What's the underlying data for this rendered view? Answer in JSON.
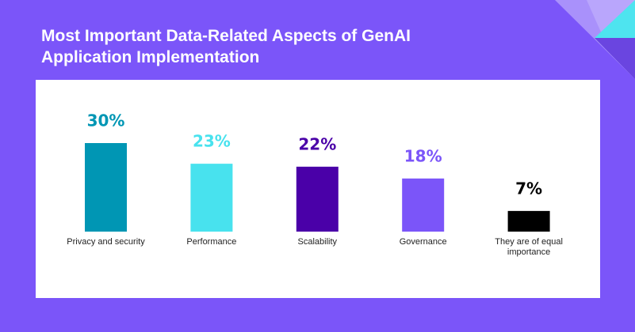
{
  "chart_data": {
    "type": "bar",
    "title": "Most Important Data-Related Aspects of GenAI Application Implementation",
    "categories": [
      "Privacy and security",
      "Performance",
      "Scalability",
      "Governance",
      "They are of equal importance"
    ],
    "values": [
      30,
      23,
      22,
      18,
      7
    ],
    "value_labels": [
      "30%",
      "23%",
      "22%",
      "18%",
      "7%"
    ],
    "colors": [
      "#0096b4",
      "#48e2ee",
      "#4a00a8",
      "#7b55f9",
      "#000000"
    ]
  }
}
